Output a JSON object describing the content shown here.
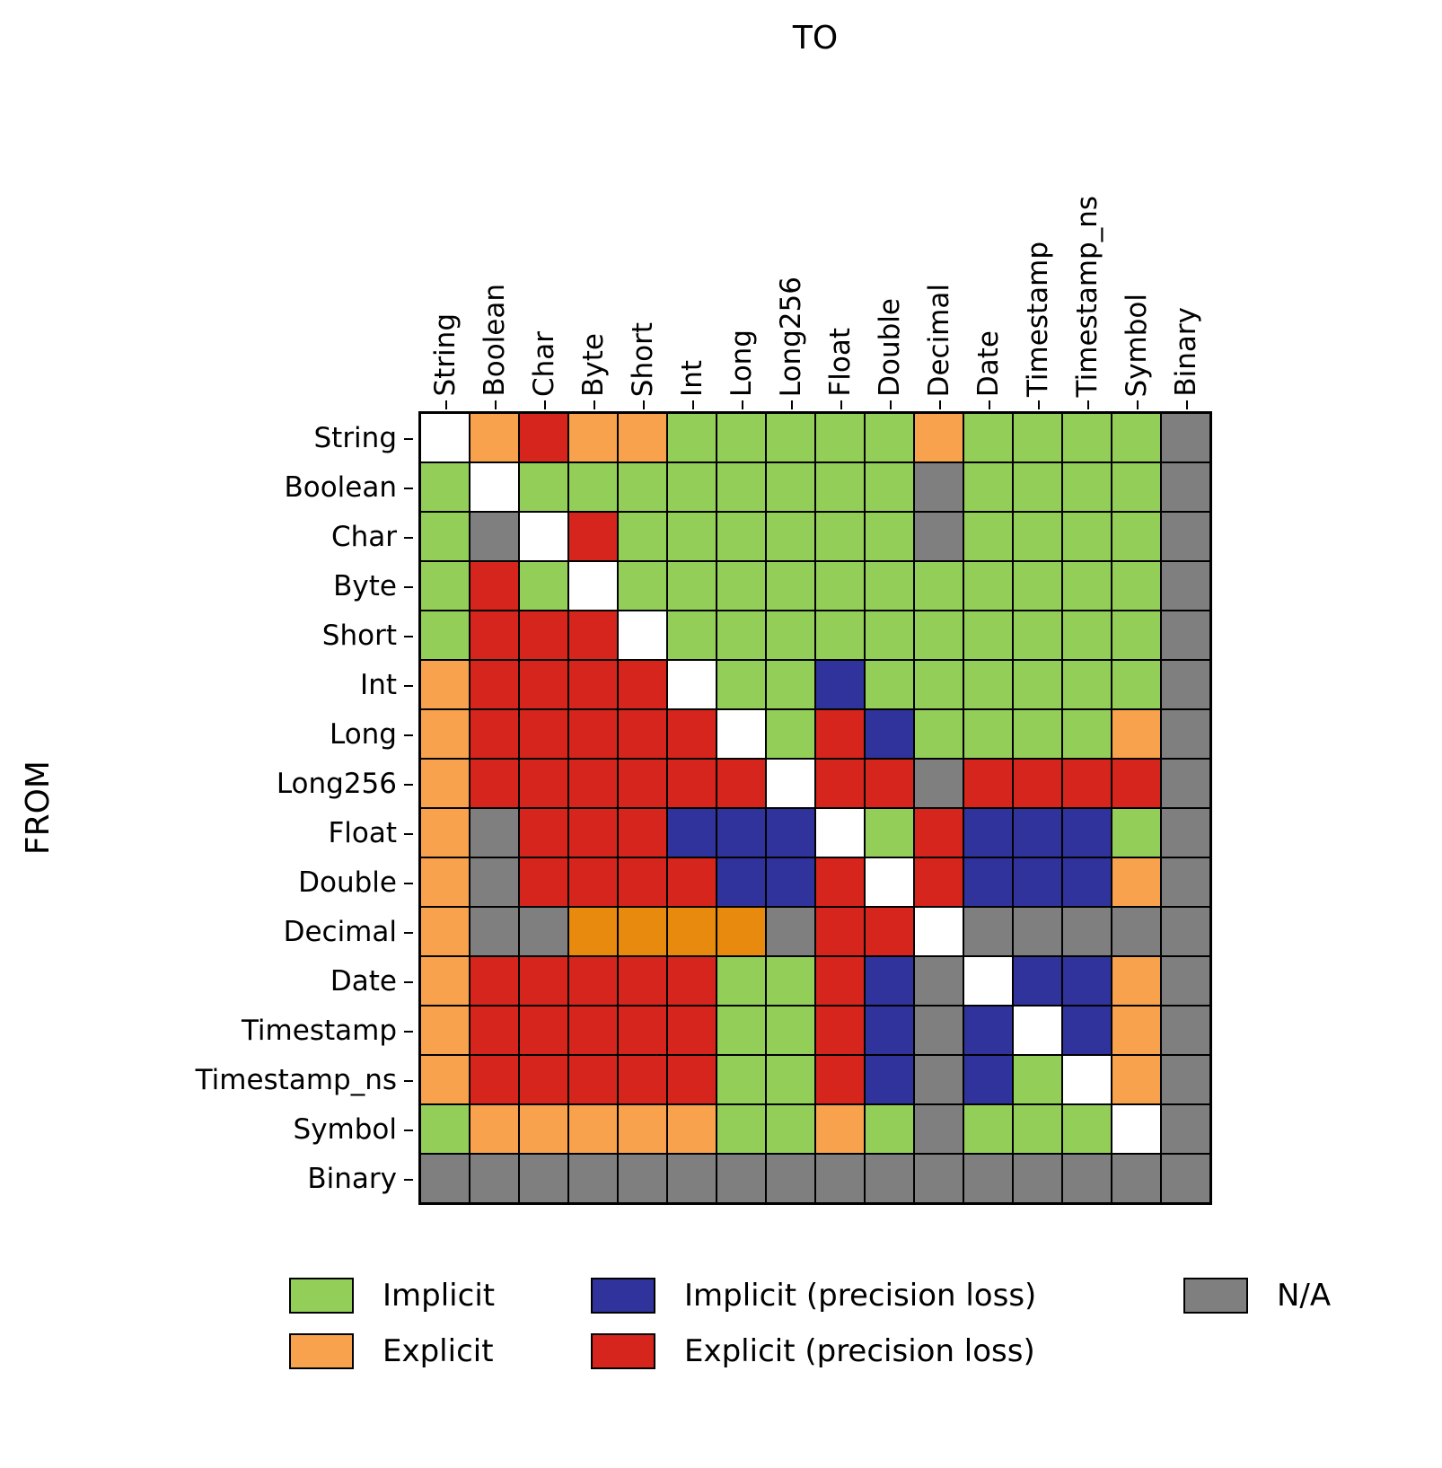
{
  "chart_data": {
    "type": "heatmap",
    "top_axis_label": "TO",
    "left_axis_label": "FROM",
    "categories": [
      "String",
      "Boolean",
      "Char",
      "Byte",
      "Short",
      "Int",
      "Long",
      "Long256",
      "Float",
      "Double",
      "Decimal",
      "Date",
      "Timestamp",
      "Timestamp_ns",
      "Symbol",
      "Binary"
    ],
    "cell_colors": {
      "I": "#93CE58",
      "E": "#F8A24E",
      "E2": "#E78A0E",
      "IP": "#30339B",
      "EP": "#D6251D",
      "NA": "#7F7F7F",
      "S": "#FFFFFF"
    },
    "cell_meanings": {
      "I": "Implicit",
      "E": "Explicit",
      "E2": "Explicit",
      "IP": "Implicit (precision loss)",
      "EP": "Explicit (precision loss)",
      "NA": "N/A",
      "S": "same type"
    },
    "matrix": [
      [
        "S",
        "E",
        "EP",
        "E",
        "E",
        "I",
        "I",
        "I",
        "I",
        "I",
        "E",
        "I",
        "I",
        "I",
        "I",
        "NA"
      ],
      [
        "I",
        "S",
        "I",
        "I",
        "I",
        "I",
        "I",
        "I",
        "I",
        "I",
        "NA",
        "I",
        "I",
        "I",
        "I",
        "NA"
      ],
      [
        "I",
        "NA",
        "S",
        "EP",
        "I",
        "I",
        "I",
        "I",
        "I",
        "I",
        "NA",
        "I",
        "I",
        "I",
        "I",
        "NA"
      ],
      [
        "I",
        "EP",
        "I",
        "S",
        "I",
        "I",
        "I",
        "I",
        "I",
        "I",
        "I",
        "I",
        "I",
        "I",
        "I",
        "NA"
      ],
      [
        "I",
        "EP",
        "EP",
        "EP",
        "S",
        "I",
        "I",
        "I",
        "I",
        "I",
        "I",
        "I",
        "I",
        "I",
        "I",
        "NA"
      ],
      [
        "E",
        "EP",
        "EP",
        "EP",
        "EP",
        "S",
        "I",
        "I",
        "IP",
        "I",
        "I",
        "I",
        "I",
        "I",
        "I",
        "NA"
      ],
      [
        "E",
        "EP",
        "EP",
        "EP",
        "EP",
        "EP",
        "S",
        "I",
        "EP",
        "IP",
        "I",
        "I",
        "I",
        "I",
        "E",
        "NA"
      ],
      [
        "E",
        "EP",
        "EP",
        "EP",
        "EP",
        "EP",
        "EP",
        "S",
        "EP",
        "EP",
        "NA",
        "EP",
        "EP",
        "EP",
        "EP",
        "NA"
      ],
      [
        "E",
        "NA",
        "EP",
        "EP",
        "EP",
        "IP",
        "IP",
        "IP",
        "S",
        "I",
        "EP",
        "IP",
        "IP",
        "IP",
        "I",
        "NA"
      ],
      [
        "E",
        "NA",
        "EP",
        "EP",
        "EP",
        "EP",
        "IP",
        "IP",
        "EP",
        "S",
        "EP",
        "IP",
        "IP",
        "IP",
        "E",
        "NA"
      ],
      [
        "E",
        "NA",
        "NA",
        "E2",
        "E2",
        "E2",
        "E2",
        "NA",
        "EP",
        "EP",
        "S",
        "NA",
        "NA",
        "NA",
        "NA",
        "NA"
      ],
      [
        "E",
        "EP",
        "EP",
        "EP",
        "EP",
        "EP",
        "I",
        "I",
        "EP",
        "IP",
        "NA",
        "S",
        "IP",
        "IP",
        "E",
        "NA"
      ],
      [
        "E",
        "EP",
        "EP",
        "EP",
        "EP",
        "EP",
        "I",
        "I",
        "EP",
        "IP",
        "NA",
        "IP",
        "S",
        "IP",
        "E",
        "NA"
      ],
      [
        "E",
        "EP",
        "EP",
        "EP",
        "EP",
        "EP",
        "I",
        "I",
        "EP",
        "IP",
        "NA",
        "IP",
        "I",
        "S",
        "E",
        "NA"
      ],
      [
        "I",
        "E",
        "E",
        "E",
        "E",
        "E",
        "I",
        "I",
        "E",
        "I",
        "NA",
        "I",
        "I",
        "I",
        "S",
        "NA"
      ],
      [
        "NA",
        "NA",
        "NA",
        "NA",
        "NA",
        "NA",
        "NA",
        "NA",
        "NA",
        "NA",
        "NA",
        "NA",
        "NA",
        "NA",
        "NA",
        "NA"
      ]
    ],
    "legend": {
      "items": [
        {
          "code": "I",
          "label": "Implicit"
        },
        {
          "code": "IP",
          "label": "Implicit (precision loss)"
        },
        {
          "code": "NA",
          "label": "N/A"
        },
        {
          "code": "E",
          "label": "Explicit"
        },
        {
          "code": "EP",
          "label": "Explicit (precision loss)"
        }
      ],
      "position": "bottom"
    }
  }
}
